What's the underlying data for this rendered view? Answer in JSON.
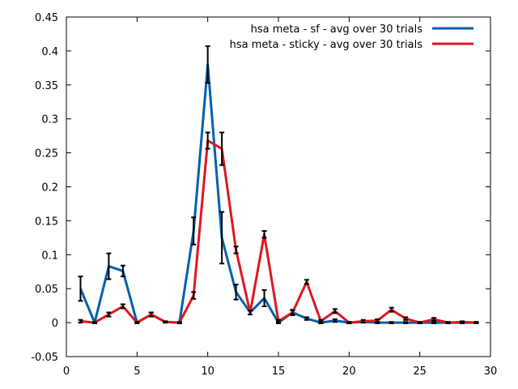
{
  "chart_data": {
    "type": "line",
    "title": "",
    "xlabel": "",
    "ylabel": "",
    "xlim": [
      0,
      30
    ],
    "ylim": [
      -0.05,
      0.45
    ],
    "x_ticks": [
      0,
      5,
      10,
      15,
      20,
      25,
      30
    ],
    "x_tick_labels": [
      "0",
      "5",
      "10",
      "15",
      "20",
      "25",
      "30"
    ],
    "y_ticks": [
      -0.05,
      0,
      0.05,
      0.1,
      0.15,
      0.2,
      0.25,
      0.3,
      0.35,
      0.4,
      0.45
    ],
    "y_tick_labels": [
      "-0.05",
      "0",
      "0.05",
      "0.1",
      "0.15",
      "0.2",
      "0.25",
      "0.3",
      "0.35",
      "0.4",
      "0.45"
    ],
    "grid": false,
    "legend_position": "top-right",
    "x": [
      1,
      2,
      3,
      4,
      5,
      6,
      7,
      8,
      9,
      10,
      11,
      12,
      13,
      14,
      15,
      16,
      17,
      18,
      19,
      20,
      21,
      22,
      23,
      24,
      25,
      26,
      27,
      28,
      29
    ],
    "series": [
      {
        "name": "hsa meta - sf - avg over 30 trials",
        "color": "#0060ad",
        "values": [
          0.05,
          0.0,
          0.083,
          0.076,
          0.0,
          0.012,
          0.001,
          0.0,
          0.135,
          0.38,
          0.125,
          0.045,
          0.015,
          0.036,
          0.0,
          0.015,
          0.006,
          0.0,
          0.003,
          0.0,
          0.001,
          0.0,
          0.0,
          0.0,
          0.0,
          0.0,
          0.0,
          0.0,
          0.0
        ],
        "errors": [
          0.018,
          0.001,
          0.019,
          0.008,
          0.001,
          0.003,
          0.001,
          0.001,
          0.02,
          0.027,
          0.038,
          0.011,
          0.003,
          0.012,
          0.001,
          0.004,
          0.002,
          0.001,
          0.002,
          0.001,
          0.001,
          0.001,
          0.001,
          0.001,
          0.001,
          0.001,
          0.001,
          0.001,
          0.001
        ]
      },
      {
        "name": "hsa meta - sticky - avg over 30 trials",
        "color": "#dd181f",
        "values": [
          0.002,
          0.0,
          0.012,
          0.024,
          0.0,
          0.012,
          0.001,
          0.0,
          0.04,
          0.268,
          0.256,
          0.107,
          0.015,
          0.13,
          0.002,
          0.015,
          0.06,
          0.002,
          0.017,
          0.0,
          0.002,
          0.003,
          0.019,
          0.006,
          0.0,
          0.005,
          0.0,
          0.001,
          0.0
        ],
        "errors": [
          0.002,
          0.001,
          0.003,
          0.003,
          0.001,
          0.003,
          0.001,
          0.001,
          0.005,
          0.012,
          0.024,
          0.005,
          0.003,
          0.005,
          0.002,
          0.003,
          0.003,
          0.002,
          0.003,
          0.001,
          0.002,
          0.002,
          0.003,
          0.002,
          0.001,
          0.002,
          0.001,
          0.001,
          0.001
        ]
      }
    ]
  }
}
